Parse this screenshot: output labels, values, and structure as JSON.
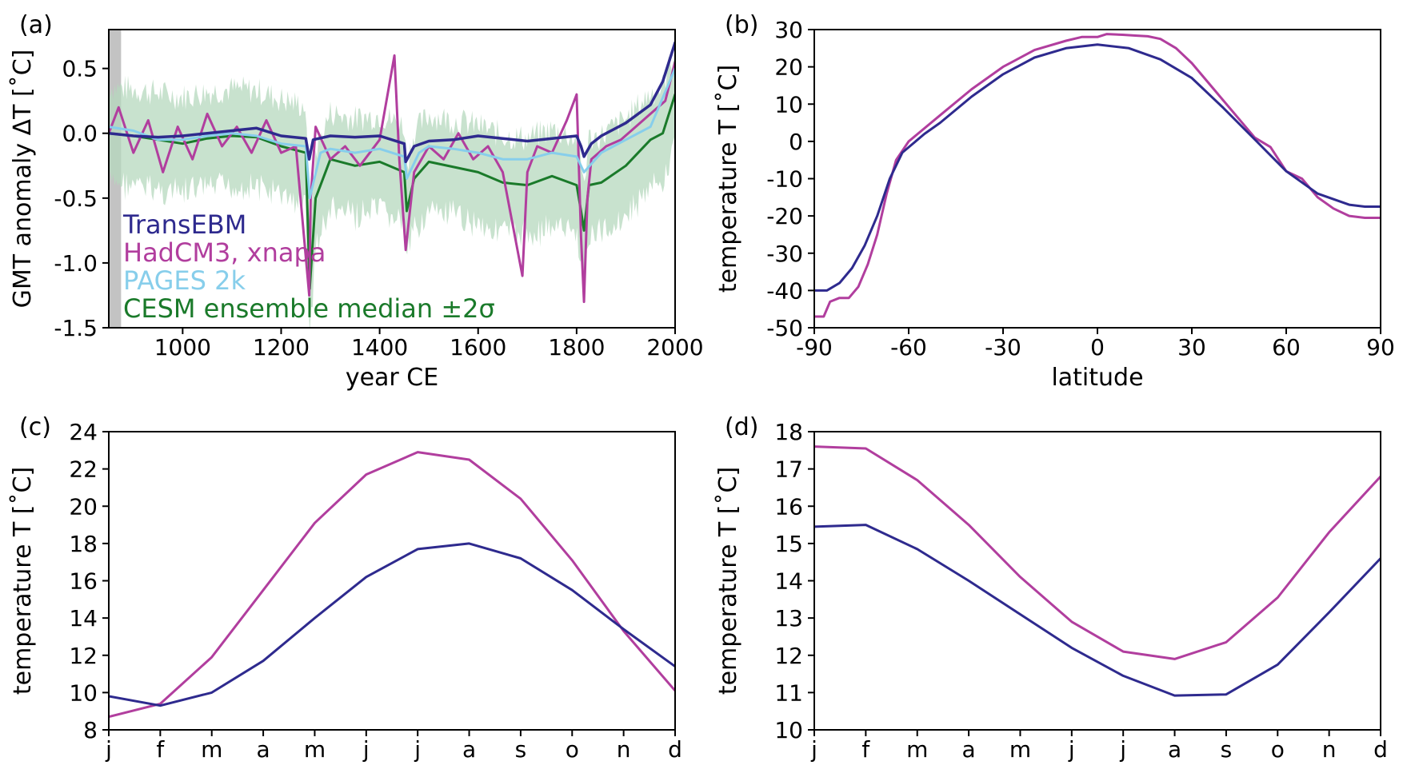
{
  "colors": {
    "transebm": "#2e2a8e",
    "hadcm3": "#b13e9e",
    "pages": "#87ceeb",
    "cesm": "#1a7a2a",
    "cesm_band": "#b5d8bd",
    "spinup": "#c3c3c3"
  },
  "chart_data": [
    {
      "id": "a",
      "panel_label": "(a)",
      "type": "line",
      "xlabel": "year CE",
      "ylabel": "GMT anomaly ΔT [˚C]",
      "xlim": [
        850,
        2000
      ],
      "ylim": [
        -1.5,
        0.8
      ],
      "xticks": [
        1000,
        1200,
        1400,
        1600,
        1800,
        2000
      ],
      "xtick_labels": [
        "1000",
        "1200",
        "1400",
        "1600",
        "1800",
        "2000"
      ],
      "yticks": [
        0.5,
        0.0,
        -0.5,
        -1.0,
        -1.5
      ],
      "ytick_labels": [
        "0.5",
        "0.0",
        "-0.5",
        "-1.0",
        "-1.5"
      ],
      "shaded_span": [
        850,
        875
      ],
      "legend": [
        {
          "label": "TransEBM",
          "color": "#2e2a8e"
        },
        {
          "label": "HadCM3, xnapa",
          "color": "#b13e9e"
        },
        {
          "label": "PAGES 2k",
          "color": "#87ceeb"
        },
        {
          "label": "CESM ensemble median ±2σ",
          "color": "#1a7a2a"
        }
      ],
      "series": [
        {
          "name": "CESM ensemble median",
          "color": "#1a7a2a",
          "x": [
            850,
            900,
            950,
            1000,
            1050,
            1100,
            1150,
            1200,
            1250,
            1258,
            1270,
            1300,
            1350,
            1400,
            1450,
            1455,
            1470,
            1500,
            1550,
            1600,
            1650,
            1700,
            1750,
            1800,
            1809,
            1815,
            1825,
            1850,
            1900,
            1950,
            1975,
            2000
          ],
          "y": [
            0.0,
            -0.02,
            -0.05,
            -0.08,
            -0.04,
            -0.02,
            -0.03,
            -0.1,
            -0.15,
            -1.2,
            -0.5,
            -0.2,
            -0.25,
            -0.22,
            -0.3,
            -0.6,
            -0.35,
            -0.22,
            -0.26,
            -0.3,
            -0.38,
            -0.4,
            -0.33,
            -0.4,
            -0.6,
            -0.75,
            -0.4,
            -0.38,
            -0.25,
            -0.05,
            0.0,
            0.3
          ]
        },
        {
          "name": "HadCM3, xnapa",
          "color": "#b13e9e",
          "x": [
            850,
            870,
            900,
            930,
            960,
            990,
            1020,
            1050,
            1080,
            1110,
            1140,
            1170,
            1200,
            1230,
            1257,
            1260,
            1270,
            1300,
            1330,
            1360,
            1400,
            1430,
            1440,
            1453,
            1470,
            1500,
            1530,
            1560,
            1590,
            1620,
            1650,
            1690,
            1700,
            1720,
            1750,
            1780,
            1800,
            1809,
            1815,
            1822,
            1830,
            1860,
            1890,
            1920,
            1950,
            1980,
            2000
          ],
          "y": [
            0.0,
            0.2,
            -0.15,
            0.1,
            -0.3,
            0.05,
            -0.2,
            0.15,
            -0.1,
            0.05,
            -0.15,
            0.1,
            -0.15,
            -0.1,
            -1.25,
            -0.5,
            0.05,
            -0.2,
            -0.1,
            -0.25,
            -0.05,
            0.6,
            -0.2,
            -0.9,
            -0.3,
            -0.1,
            -0.2,
            0.0,
            -0.2,
            -0.1,
            -0.3,
            -1.1,
            -0.3,
            -0.1,
            -0.15,
            0.1,
            0.3,
            -0.8,
            -1.3,
            -0.5,
            -0.2,
            -0.1,
            -0.05,
            0.05,
            0.15,
            0.25,
            0.55
          ]
        },
        {
          "name": "PAGES 2k",
          "color": "#87ceeb",
          "x": [
            850,
            900,
            950,
            1000,
            1050,
            1100,
            1150,
            1200,
            1250,
            1258,
            1280,
            1300,
            1350,
            1400,
            1450,
            1455,
            1480,
            1500,
            1550,
            1600,
            1650,
            1700,
            1750,
            1800,
            1815,
            1850,
            1900,
            1950,
            2000
          ],
          "y": [
            0.05,
            0.02,
            -0.05,
            -0.05,
            -0.02,
            0.0,
            -0.02,
            -0.08,
            -0.1,
            -0.5,
            -0.15,
            -0.12,
            -0.15,
            -0.12,
            -0.18,
            -0.35,
            -0.15,
            -0.1,
            -0.12,
            -0.15,
            -0.2,
            -0.2,
            -0.15,
            -0.18,
            -0.3,
            -0.15,
            -0.05,
            0.05,
            0.5
          ]
        },
        {
          "name": "TransEBM",
          "color": "#2e2a8e",
          "x": [
            850,
            900,
            950,
            1000,
            1050,
            1100,
            1150,
            1200,
            1250,
            1257,
            1265,
            1300,
            1350,
            1400,
            1450,
            1453,
            1470,
            1500,
            1550,
            1600,
            1650,
            1700,
            1750,
            1800,
            1809,
            1815,
            1830,
            1850,
            1900,
            1950,
            1975,
            2000
          ],
          "y": [
            0.0,
            -0.02,
            -0.03,
            -0.02,
            0.0,
            0.02,
            0.04,
            -0.02,
            -0.04,
            -0.2,
            -0.05,
            -0.02,
            -0.03,
            -0.02,
            -0.08,
            -0.22,
            -0.1,
            -0.06,
            -0.05,
            -0.02,
            -0.04,
            -0.06,
            -0.04,
            -0.02,
            -0.1,
            -0.18,
            -0.08,
            -0.02,
            0.08,
            0.22,
            0.4,
            0.7
          ]
        }
      ]
    },
    {
      "id": "b",
      "panel_label": "(b)",
      "type": "line",
      "xlabel": "latitude",
      "ylabel": "temperature T [˚C]",
      "xlim": [
        -90,
        90
      ],
      "ylim": [
        -50,
        30
      ],
      "xticks": [
        -90,
        -60,
        -30,
        0,
        30,
        60,
        90
      ],
      "xtick_labels": [
        "-90",
        "-60",
        "-30",
        "0",
        "30",
        "60",
        "90"
      ],
      "yticks": [
        30,
        20,
        10,
        0,
        -10,
        -20,
        -30,
        -40,
        -50
      ],
      "ytick_labels": [
        "30",
        "20",
        "10",
        "0",
        "-10",
        "-20",
        "-30",
        "-40",
        "-50"
      ],
      "series": [
        {
          "name": "HadCM3, xnapa",
          "color": "#b13e9e",
          "x": [
            -90,
            -87,
            -85,
            -82,
            -79,
            -76,
            -73,
            -70,
            -67,
            -64,
            -60,
            -50,
            -40,
            -30,
            -20,
            -10,
            -5,
            0,
            3,
            8,
            12,
            16,
            20,
            25,
            30,
            40,
            50,
            55,
            60,
            65,
            70,
            75,
            80,
            85,
            90
          ],
          "y": [
            -47,
            -47,
            -43,
            -42,
            -42,
            -39,
            -33,
            -25,
            -14,
            -5,
            0,
            7,
            14,
            20,
            24.5,
            27,
            28,
            28,
            28.8,
            28.6,
            28.4,
            28.2,
            27.5,
            25,
            21,
            11,
            1,
            -1.5,
            -8,
            -10,
            -15,
            -18,
            -20,
            -20.5,
            -20.5
          ]
        },
        {
          "name": "TransEBM",
          "color": "#2e2a8e",
          "x": [
            -90,
            -86,
            -82,
            -78,
            -74,
            -70,
            -66,
            -62,
            -55,
            -50,
            -40,
            -30,
            -20,
            -10,
            0,
            10,
            20,
            30,
            40,
            50,
            60,
            70,
            80,
            85,
            90
          ],
          "y": [
            -40,
            -40,
            -38,
            -34,
            -28,
            -20,
            -10,
            -3,
            2,
            5,
            12,
            18,
            22.5,
            25,
            26,
            25,
            22,
            17,
            9,
            0.5,
            -8,
            -14,
            -17,
            -17.5,
            -17.5
          ]
        }
      ]
    },
    {
      "id": "c",
      "panel_label": "(c)",
      "type": "line",
      "xlabel": "",
      "ylabel": "temperature T [˚C]",
      "categories": [
        "j",
        "f",
        "m",
        "a",
        "m",
        "j",
        "j",
        "a",
        "s",
        "o",
        "n",
        "d"
      ],
      "ylim": [
        8,
        24
      ],
      "yticks": [
        24,
        22,
        20,
        18,
        16,
        14,
        12,
        10,
        8
      ],
      "ytick_labels": [
        "24",
        "22",
        "20",
        "18",
        "16",
        "14",
        "12",
        "10",
        "8"
      ],
      "series": [
        {
          "name": "HadCM3, xnapa",
          "color": "#b13e9e",
          "values": [
            8.7,
            9.4,
            11.9,
            15.5,
            19.1,
            21.7,
            22.9,
            22.5,
            20.4,
            17.1,
            13.3,
            10.1
          ]
        },
        {
          "name": "TransEBM",
          "color": "#2e2a8e",
          "values": [
            9.8,
            9.3,
            10.0,
            11.7,
            14.0,
            16.2,
            17.7,
            18.0,
            17.2,
            15.5,
            13.4,
            11.4
          ]
        }
      ]
    },
    {
      "id": "d",
      "panel_label": "(d)",
      "type": "line",
      "xlabel": "",
      "ylabel": "temperature T [˚C]",
      "categories": [
        "j",
        "f",
        "m",
        "a",
        "m",
        "j",
        "j",
        "a",
        "s",
        "o",
        "n",
        "d"
      ],
      "ylim": [
        10,
        18
      ],
      "yticks": [
        18,
        17,
        16,
        15,
        14,
        13,
        12,
        11,
        10
      ],
      "ytick_labels": [
        "18",
        "17",
        "16",
        "15",
        "14",
        "13",
        "12",
        "11",
        "10"
      ],
      "series": [
        {
          "name": "HadCM3, xnapa",
          "color": "#b13e9e",
          "values": [
            17.6,
            17.55,
            16.7,
            15.5,
            14.1,
            12.9,
            12.1,
            11.9,
            12.35,
            13.55,
            15.3,
            16.8
          ]
        },
        {
          "name": "TransEBM",
          "color": "#2e2a8e",
          "values": [
            15.45,
            15.5,
            14.85,
            14.0,
            13.1,
            12.2,
            11.45,
            10.92,
            10.95,
            11.75,
            13.15,
            14.6
          ]
        }
      ]
    }
  ]
}
